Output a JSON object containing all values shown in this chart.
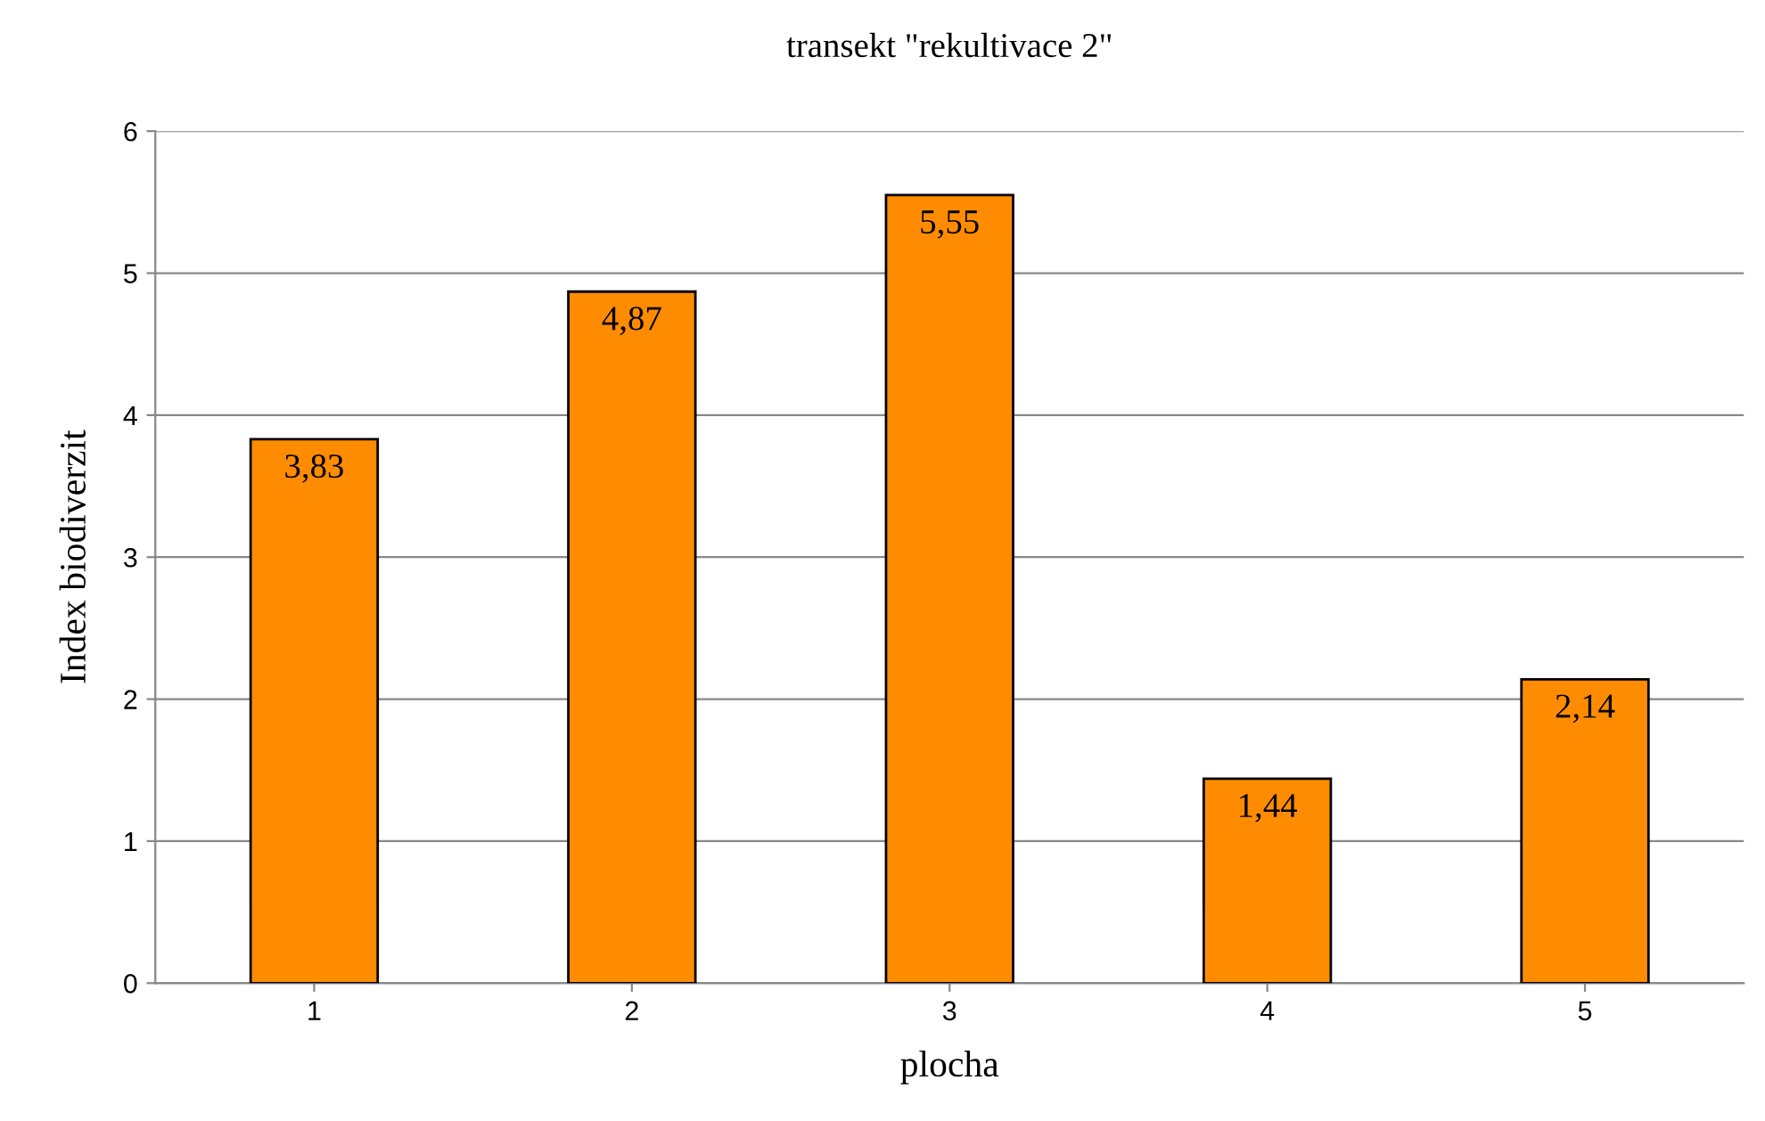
{
  "chart_data": {
    "type": "bar",
    "title": "transekt \"rekultivace 2\"",
    "xlabel": "plocha",
    "ylabel": "Index biodiverzit",
    "categories": [
      "1",
      "2",
      "3",
      "4",
      "5"
    ],
    "values": [
      3.83,
      4.87,
      5.55,
      1.44,
      2.14
    ],
    "value_labels": [
      "3,83",
      "4,87",
      "5,55",
      "1,44",
      "2,14"
    ],
    "color": "#ff8c00",
    "ylim": [
      0,
      6
    ],
    "yticks": [
      0,
      1,
      2,
      3,
      4,
      5,
      6
    ],
    "grid": "y",
    "legend": false
  }
}
